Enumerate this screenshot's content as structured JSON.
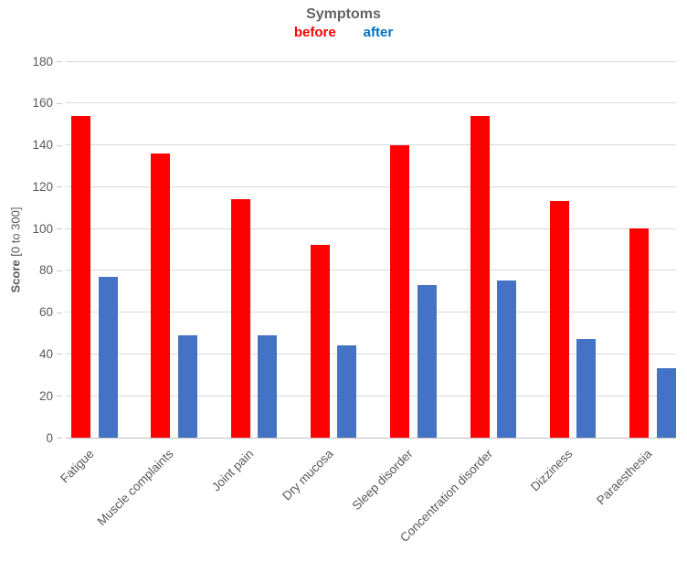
{
  "chart": {
    "title": "Symptoms",
    "legend": [
      {
        "label": "before",
        "text_color": "#ff0000"
      },
      {
        "label": "after",
        "text_color": "#0070c0"
      }
    ],
    "y_axis_title_bold": "Score",
    "y_axis_title_rest": " [0 to 300]"
  },
  "chart_data": {
    "type": "bar",
    "title": "Symptoms",
    "categories": [
      "Fatigue",
      "Muscle complaints",
      "Joint pain",
      "Dry mucosa",
      "Sleep disorder",
      "Concentration disorder",
      "Dizziness",
      "Paraesthesia"
    ],
    "series": [
      {
        "name": "before",
        "color": "#ff0000",
        "values": [
          154,
          136,
          114,
          92,
          140,
          154,
          113,
          100
        ]
      },
      {
        "name": "after",
        "color": "#4472c4",
        "values": [
          77,
          49,
          49,
          44,
          73,
          75,
          47,
          33
        ]
      }
    ],
    "xlabel": "",
    "ylabel": "Score [0 to 300]",
    "ylim": [
      0,
      180
    ],
    "ytick_step": 20,
    "grid": true,
    "legend_position": "top",
    "legend_text_colors": [
      "#ff0000",
      "#0070c0"
    ],
    "gridline_color": "#d9d9d9",
    "axis_line_color": "#bfbfbf",
    "tick_label_color": "#595959",
    "title_color": "#636363"
  }
}
